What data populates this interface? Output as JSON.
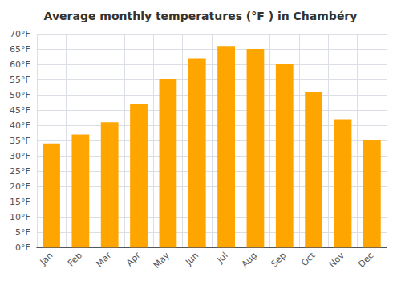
{
  "chart_data": {
    "type": "bar",
    "title": "Average monthly temperatures (°F ) in Chambéry",
    "categories": [
      "Jan",
      "Feb",
      "Mar",
      "Apr",
      "May",
      "Jun",
      "Jul",
      "Aug",
      "Sep",
      "Oct",
      "Nov",
      "Dec"
    ],
    "values": [
      34,
      37,
      41,
      47,
      55,
      62,
      66,
      65,
      60,
      51,
      42,
      35
    ],
    "color": "#FFA500",
    "ylim": [
      0,
      70
    ],
    "yticks": [
      {
        "value": 0,
        "label": "0°F"
      },
      {
        "value": 5,
        "label": "5°F"
      },
      {
        "value": 10,
        "label": "10°F"
      },
      {
        "value": 15,
        "label": "15°F"
      },
      {
        "value": 20,
        "label": "20°F"
      },
      {
        "value": 25,
        "label": "25°F"
      },
      {
        "value": 30,
        "label": "30°F"
      },
      {
        "value": 35,
        "label": "35°F"
      },
      {
        "value": 40,
        "label": "40°F"
      },
      {
        "value": 45,
        "label": "45°F"
      },
      {
        "value": 50,
        "label": "50°F"
      },
      {
        "value": 55,
        "label": "55°F"
      },
      {
        "value": 60,
        "label": "60°F"
      },
      {
        "value": 65,
        "label": "65°F"
      },
      {
        "value": 70,
        "label": "70°F"
      }
    ],
    "grid": true
  }
}
